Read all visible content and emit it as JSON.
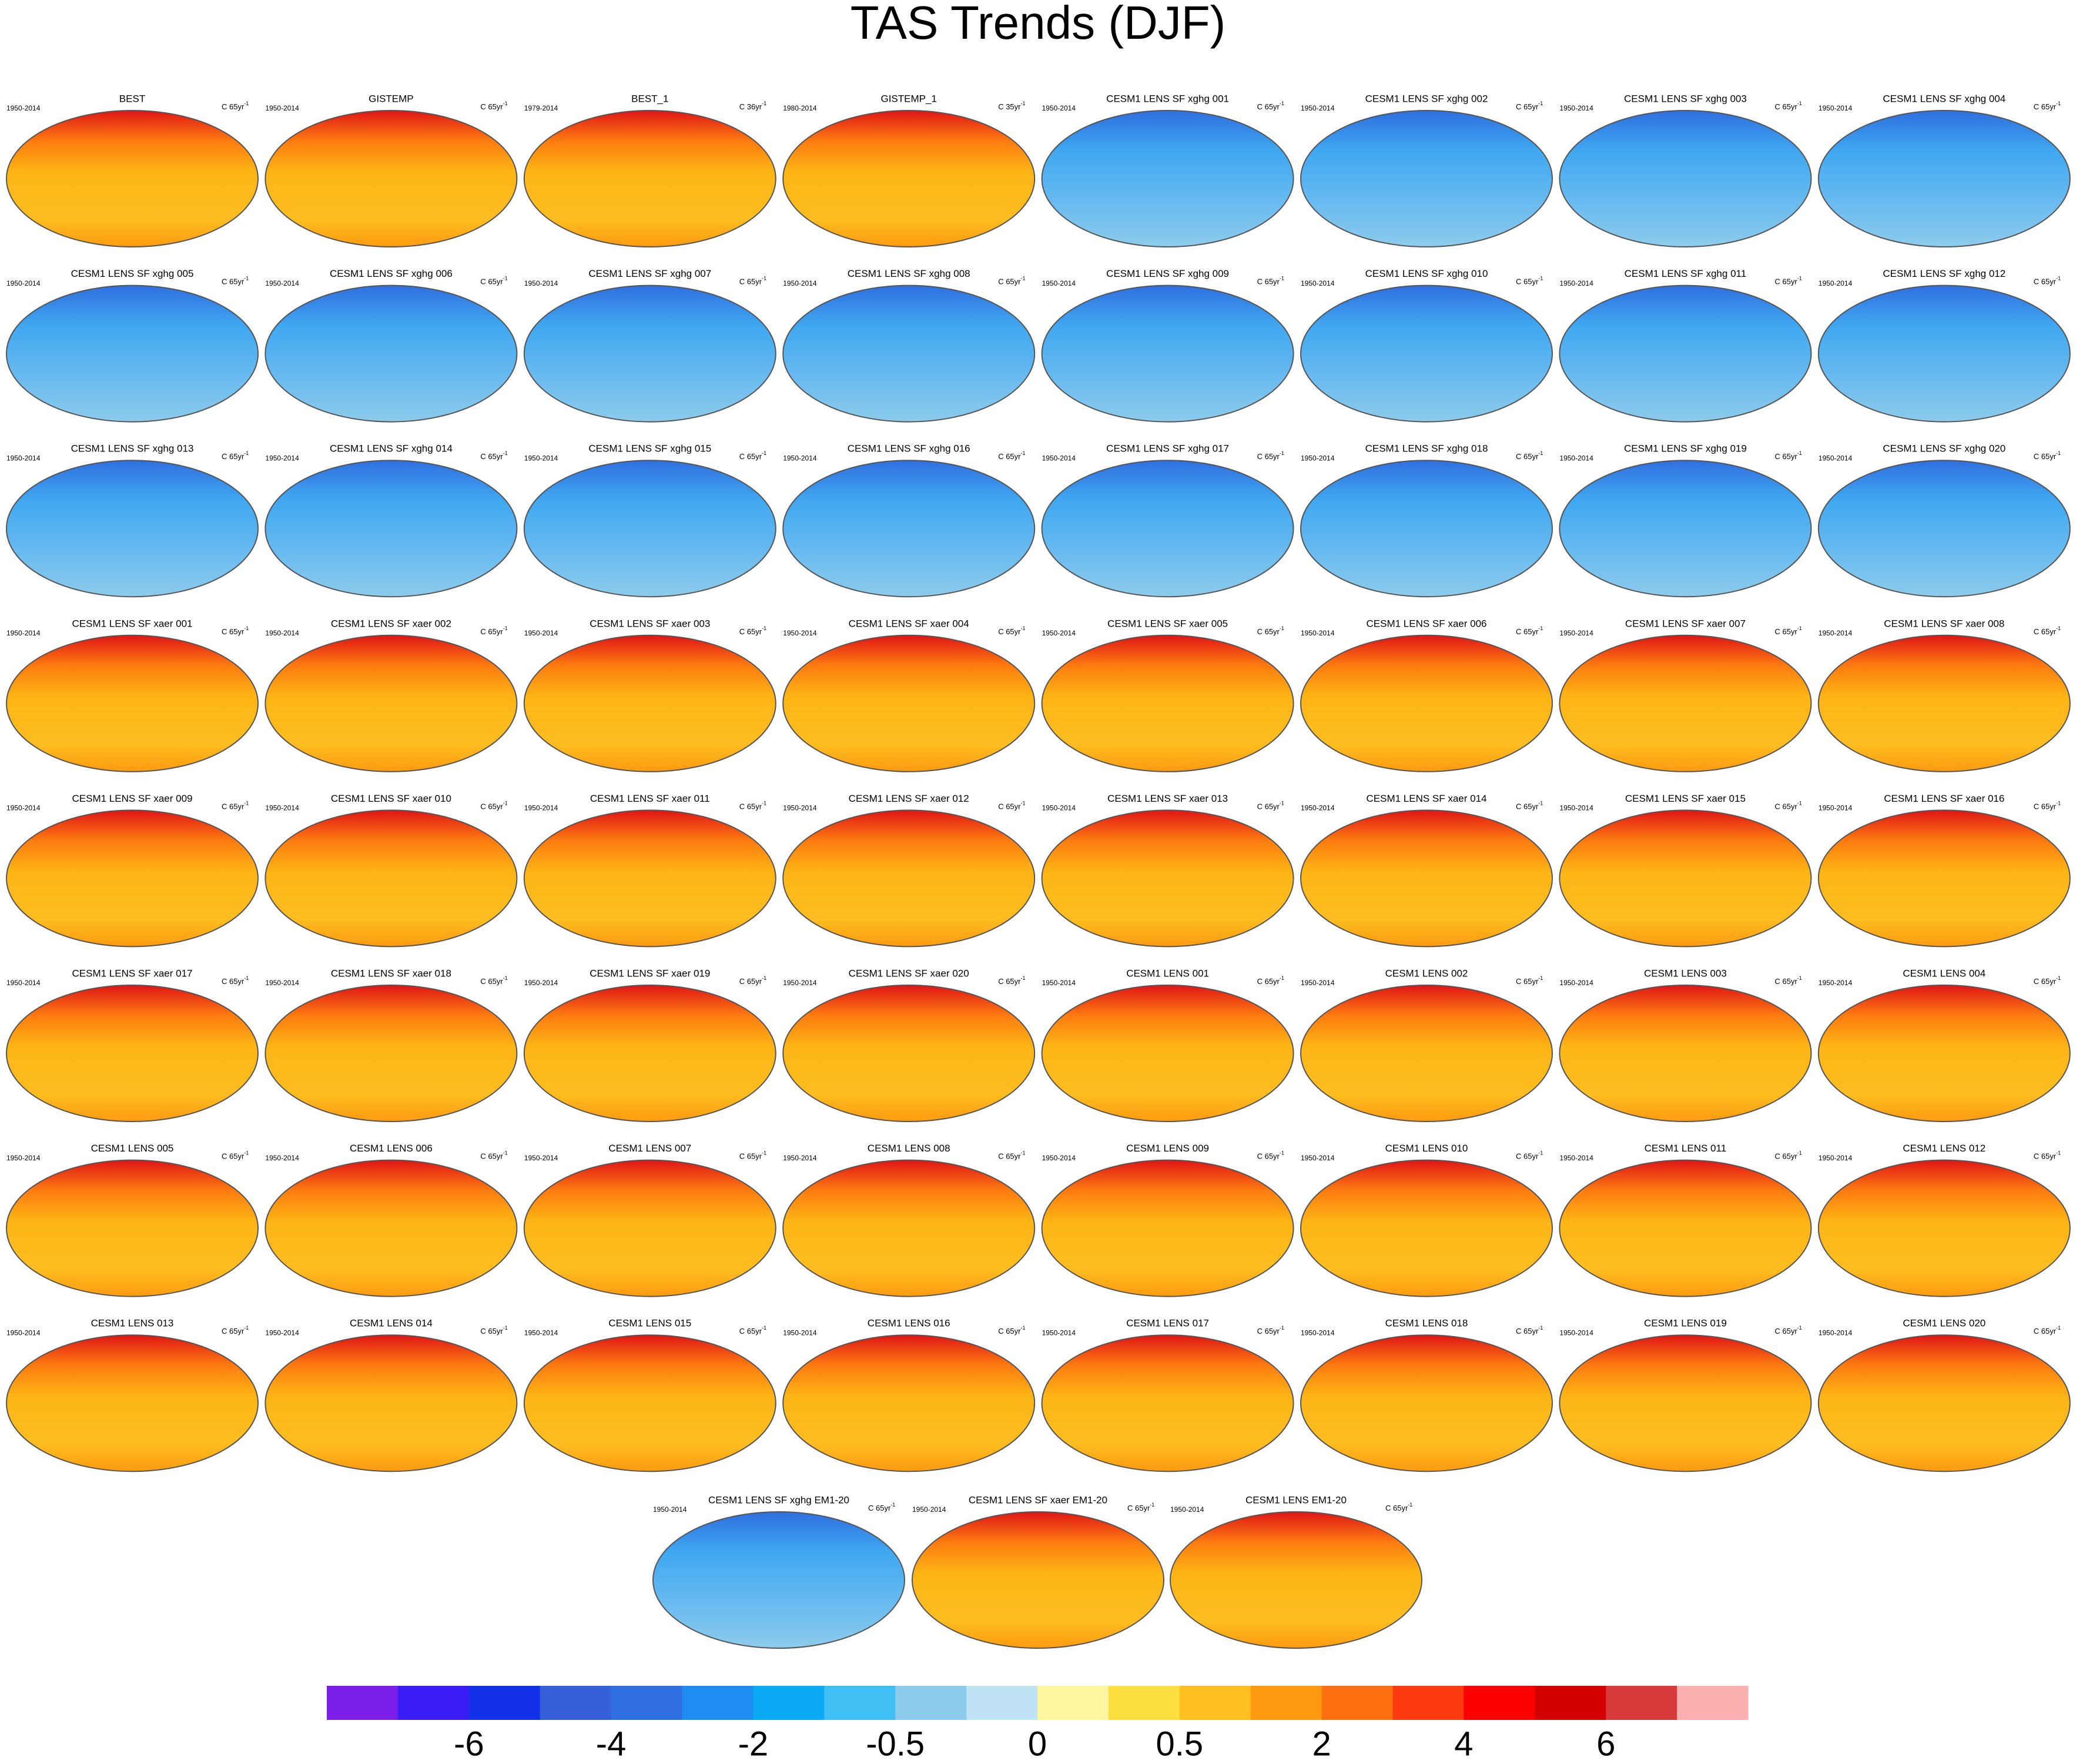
{
  "title": "TAS Trends (DJF)",
  "panels": [
    {
      "label": "BEST",
      "period": "1950-2014",
      "units": "C 65yr",
      "exponent": "-1"
    },
    {
      "label": "GISTEMP",
      "period": "1950-2014",
      "units": "C 65yr",
      "exponent": "-1"
    },
    {
      "label": "BEST_1",
      "period": "1979-2014",
      "units": "C 36yr",
      "exponent": "-1"
    },
    {
      "label": "GISTEMP_1",
      "period": "1980-2014",
      "units": "C 35yr",
      "exponent": "-1"
    },
    {
      "label": "CESM1 LENS SF xghg 001",
      "period": "1950-2014",
      "units": "C 65yr",
      "exponent": "-1"
    },
    {
      "label": "CESM1 LENS SF xghg 002",
      "period": "1950-2014",
      "units": "C 65yr",
      "exponent": "-1"
    },
    {
      "label": "CESM1 LENS SF xghg 003",
      "period": "1950-2014",
      "units": "C 65yr",
      "exponent": "-1"
    },
    {
      "label": "CESM1 LENS SF xghg 004",
      "period": "1950-2014",
      "units": "C 65yr",
      "exponent": "-1"
    },
    {
      "label": "CESM1 LENS SF xghg 005",
      "period": "1950-2014",
      "units": "C 65yr",
      "exponent": "-1"
    },
    {
      "label": "CESM1 LENS SF xghg 006",
      "period": "1950-2014",
      "units": "C 65yr",
      "exponent": "-1"
    },
    {
      "label": "CESM1 LENS SF xghg 007",
      "period": "1950-2014",
      "units": "C 65yr",
      "exponent": "-1"
    },
    {
      "label": "CESM1 LENS SF xghg 008",
      "period": "1950-2014",
      "units": "C 65yr",
      "exponent": "-1"
    },
    {
      "label": "CESM1 LENS SF xghg 009",
      "period": "1950-2014",
      "units": "C 65yr",
      "exponent": "-1"
    },
    {
      "label": "CESM1 LENS SF xghg 010",
      "period": "1950-2014",
      "units": "C 65yr",
      "exponent": "-1"
    },
    {
      "label": "CESM1 LENS SF xghg 011",
      "period": "1950-2014",
      "units": "C 65yr",
      "exponent": "-1"
    },
    {
      "label": "CESM1 LENS SF xghg 012",
      "period": "1950-2014",
      "units": "C 65yr",
      "exponent": "-1"
    },
    {
      "label": "CESM1 LENS SF xghg 013",
      "period": "1950-2014",
      "units": "C 65yr",
      "exponent": "-1"
    },
    {
      "label": "CESM1 LENS SF xghg 014",
      "period": "1950-2014",
      "units": "C 65yr",
      "exponent": "-1"
    },
    {
      "label": "CESM1 LENS SF xghg 015",
      "period": "1950-2014",
      "units": "C 65yr",
      "exponent": "-1"
    },
    {
      "label": "CESM1 LENS SF xghg 016",
      "period": "1950-2014",
      "units": "C 65yr",
      "exponent": "-1"
    },
    {
      "label": "CESM1 LENS SF xghg 017",
      "period": "1950-2014",
      "units": "C 65yr",
      "exponent": "-1"
    },
    {
      "label": "CESM1 LENS SF xghg 018",
      "period": "1950-2014",
      "units": "C 65yr",
      "exponent": "-1"
    },
    {
      "label": "CESM1 LENS SF xghg 019",
      "period": "1950-2014",
      "units": "C 65yr",
      "exponent": "-1"
    },
    {
      "label": "CESM1 LENS SF xghg 020",
      "period": "1950-2014",
      "units": "C 65yr",
      "exponent": "-1"
    },
    {
      "label": "CESM1 LENS SF xaer 001",
      "period": "1950-2014",
      "units": "C 65yr",
      "exponent": "-1"
    },
    {
      "label": "CESM1 LENS SF xaer 002",
      "period": "1950-2014",
      "units": "C 65yr",
      "exponent": "-1"
    },
    {
      "label": "CESM1 LENS SF xaer 003",
      "period": "1950-2014",
      "units": "C 65yr",
      "exponent": "-1"
    },
    {
      "label": "CESM1 LENS SF xaer 004",
      "period": "1950-2014",
      "units": "C 65yr",
      "exponent": "-1"
    },
    {
      "label": "CESM1 LENS SF xaer 005",
      "period": "1950-2014",
      "units": "C 65yr",
      "exponent": "-1"
    },
    {
      "label": "CESM1 LENS SF xaer 006",
      "period": "1950-2014",
      "units": "C 65yr",
      "exponent": "-1"
    },
    {
      "label": "CESM1 LENS SF xaer 007",
      "period": "1950-2014",
      "units": "C 65yr",
      "exponent": "-1"
    },
    {
      "label": "CESM1 LENS SF xaer 008",
      "period": "1950-2014",
      "units": "C 65yr",
      "exponent": "-1"
    },
    {
      "label": "CESM1 LENS SF xaer 009",
      "period": "1950-2014",
      "units": "C 65yr",
      "exponent": "-1"
    },
    {
      "label": "CESM1 LENS SF xaer 010",
      "period": "1950-2014",
      "units": "C 65yr",
      "exponent": "-1"
    },
    {
      "label": "CESM1 LENS SF xaer 011",
      "period": "1950-2014",
      "units": "C 65yr",
      "exponent": "-1"
    },
    {
      "label": "CESM1 LENS SF xaer 012",
      "period": "1950-2014",
      "units": "C 65yr",
      "exponent": "-1"
    },
    {
      "label": "CESM1 LENS SF xaer 013",
      "period": "1950-2014",
      "units": "C 65yr",
      "exponent": "-1"
    },
    {
      "label": "CESM1 LENS SF xaer 014",
      "period": "1950-2014",
      "units": "C 65yr",
      "exponent": "-1"
    },
    {
      "label": "CESM1 LENS SF xaer 015",
      "period": "1950-2014",
      "units": "C 65yr",
      "exponent": "-1"
    },
    {
      "label": "CESM1 LENS SF xaer 016",
      "period": "1950-2014",
      "units": "C 65yr",
      "exponent": "-1"
    },
    {
      "label": "CESM1 LENS SF xaer 017",
      "period": "1950-2014",
      "units": "C 65yr",
      "exponent": "-1"
    },
    {
      "label": "CESM1 LENS SF xaer 018",
      "period": "1950-2014",
      "units": "C 65yr",
      "exponent": "-1"
    },
    {
      "label": "CESM1 LENS SF xaer 019",
      "period": "1950-2014",
      "units": "C 65yr",
      "exponent": "-1"
    },
    {
      "label": "CESM1 LENS SF xaer 020",
      "period": "1950-2014",
      "units": "C 65yr",
      "exponent": "-1"
    },
    {
      "label": "CESM1 LENS 001",
      "period": "1950-2014",
      "units": "C 65yr",
      "exponent": "-1"
    },
    {
      "label": "CESM1 LENS 002",
      "period": "1950-2014",
      "units": "C 65yr",
      "exponent": "-1"
    },
    {
      "label": "CESM1 LENS 003",
      "period": "1950-2014",
      "units": "C 65yr",
      "exponent": "-1"
    },
    {
      "label": "CESM1 LENS 004",
      "period": "1950-2014",
      "units": "C 65yr",
      "exponent": "-1"
    },
    {
      "label": "CESM1 LENS 005",
      "period": "1950-2014",
      "units": "C 65yr",
      "exponent": "-1"
    },
    {
      "label": "CESM1 LENS 006",
      "period": "1950-2014",
      "units": "C 65yr",
      "exponent": "-1"
    },
    {
      "label": "CESM1 LENS 007",
      "period": "1950-2014",
      "units": "C 65yr",
      "exponent": "-1"
    },
    {
      "label": "CESM1 LENS 008",
      "period": "1950-2014",
      "units": "C 65yr",
      "exponent": "-1"
    },
    {
      "label": "CESM1 LENS 009",
      "period": "1950-2014",
      "units": "C 65yr",
      "exponent": "-1"
    },
    {
      "label": "CESM1 LENS 010",
      "period": "1950-2014",
      "units": "C 65yr",
      "exponent": "-1"
    },
    {
      "label": "CESM1 LENS 011",
      "period": "1950-2014",
      "units": "C 65yr",
      "exponent": "-1"
    },
    {
      "label": "CESM1 LENS 012",
      "period": "1950-2014",
      "units": "C 65yr",
      "exponent": "-1"
    },
    {
      "label": "CESM1 LENS 013",
      "period": "1950-2014",
      "units": "C 65yr",
      "exponent": "-1"
    },
    {
      "label": "CESM1 LENS 014",
      "period": "1950-2014",
      "units": "C 65yr",
      "exponent": "-1"
    },
    {
      "label": "CESM1 LENS 015",
      "period": "1950-2014",
      "units": "C 65yr",
      "exponent": "-1"
    },
    {
      "label": "CESM1 LENS 016",
      "period": "1950-2014",
      "units": "C 65yr",
      "exponent": "-1"
    },
    {
      "label": "CESM1 LENS 017",
      "period": "1950-2014",
      "units": "C 65yr",
      "exponent": "-1"
    },
    {
      "label": "CESM1 LENS 018",
      "period": "1950-2014",
      "units": "C 65yr",
      "exponent": "-1"
    },
    {
      "label": "CESM1 LENS 019",
      "period": "1950-2014",
      "units": "C 65yr",
      "exponent": "-1"
    },
    {
      "label": "CESM1 LENS 020",
      "period": "1950-2014",
      "units": "C 65yr",
      "exponent": "-1"
    },
    {
      "label": "CESM1 LENS SF xghg EM1-20",
      "period": "1950-2014",
      "units": "C 65yr",
      "exponent": "-1"
    },
    {
      "label": "CESM1 LENS SF xaer EM1-20",
      "period": "1950-2014",
      "units": "C 65yr",
      "exponent": "-1"
    },
    {
      "label": "CESM1 LENS EM1-20",
      "period": "1950-2014",
      "units": "C 65yr",
      "exponent": "-1"
    }
  ],
  "colorbar": {
    "colors": [
      "#7b20e8",
      "#3a1cf5",
      "#1430e8",
      "#3560d8",
      "#2f6fe0",
      "#1e8cf0",
      "#0aaaf5",
      "#40bff5",
      "#8ccbeb",
      "#bfe3f5",
      "#fff7a0",
      "#fde040",
      "#fdc020",
      "#fd9a10",
      "#fd7010",
      "#fd3a10",
      "#fa0000",
      "#d40000",
      "#d63a3a",
      "#fcb0b0"
    ],
    "ticks": [
      -6,
      -4,
      -2,
      -0.5,
      0,
      0.5,
      2,
      4,
      6
    ]
  }
}
